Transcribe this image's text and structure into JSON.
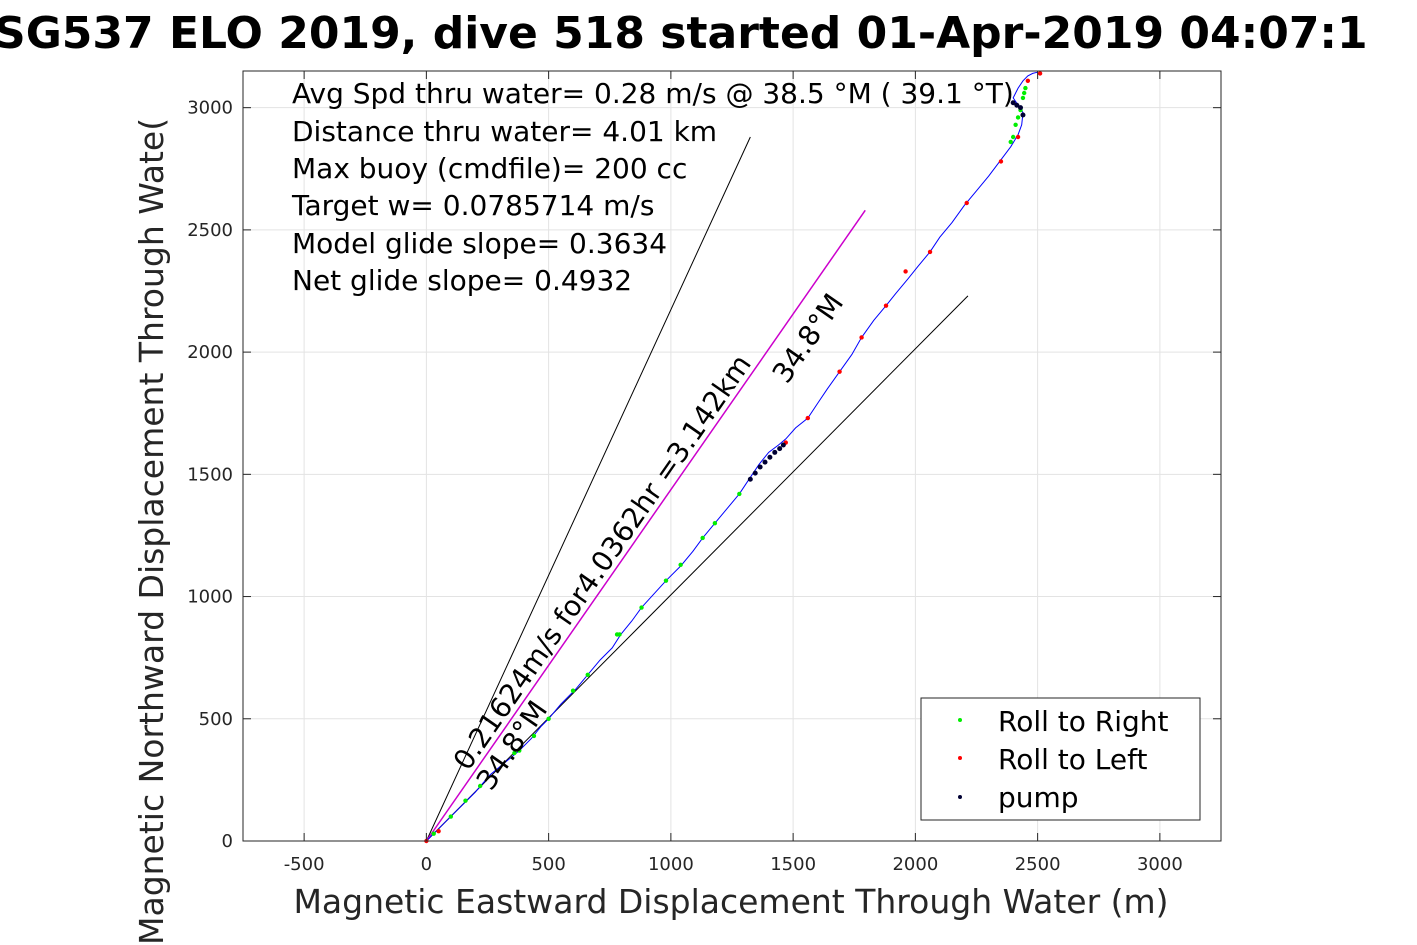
{
  "chart_data": {
    "type": "line",
    "title": "SG537 ELO 2019, dive 518 started 01-Apr-2019 04:07:1",
    "xlabel": "Magnetic Eastward Displacement Through Water (m)",
    "ylabel": "Magnetic Northward Displacement Through Wate(",
    "xlim": [
      -750,
      3250
    ],
    "ylim": [
      0,
      3150
    ],
    "xticks": [
      -500,
      0,
      500,
      1000,
      1500,
      2000,
      2500,
      3000
    ],
    "xtick_labels": [
      "-500",
      "0",
      "500",
      "1000",
      "1500",
      "2000",
      "2500",
      "3000"
    ],
    "yticks": [
      0,
      500,
      1000,
      1500,
      2000,
      2500,
      3000
    ],
    "ytick_labels": [
      "0",
      "500",
      "1000",
      "1500",
      "2000",
      "2500",
      "3000"
    ],
    "grid": true,
    "annotations": [
      "Avg Spd thru water=  0.28 m/s @  38.5 °M ( 39.1 °T)",
      "Distance thru water=  4.01 km",
      "Max buoy (cmdfile)= 200 cc",
      "Target w= 0.0785714 m/s",
      "Model glide slope= 0.3634",
      "Net glide slope= 0.4932"
    ],
    "rotated_labels": {
      "current": "0.21624m/s for4.0362hr =3.142km",
      "heading_upper": "34.8°M",
      "heading_lower": "34.8°M"
    },
    "reference_lines": [
      {
        "name": "heading-bound-left",
        "color": "#000000",
        "x": [
          0,
          1325
        ],
        "y": [
          0,
          2880
        ]
      },
      {
        "name": "heading-bound-right",
        "color": "#000000",
        "x": [
          0,
          2215
        ],
        "y": [
          0,
          2230
        ]
      },
      {
        "name": "current-vector",
        "color": "#cc00cc",
        "x": [
          0,
          1795
        ],
        "y": [
          0,
          2580
        ]
      }
    ],
    "track": {
      "color": "#0000ff",
      "x": [
        0,
        60,
        130,
        200,
        260,
        320,
        380,
        430,
        470,
        500,
        550,
        610,
        660,
        710,
        760,
        795,
        840,
        880,
        930,
        980,
        1040,
        1090,
        1130,
        1180,
        1230,
        1280,
        1320,
        1360,
        1400,
        1440,
        1470,
        1510,
        1560,
        1600,
        1640,
        1690,
        1740,
        1780,
        1830,
        1880,
        1920,
        1970,
        2010,
        2060,
        2100,
        2150,
        2200,
        2250,
        2300,
        2345,
        2390,
        2420,
        2435,
        2440,
        2420,
        2400,
        2420,
        2440,
        2460,
        2480,
        2500
      ],
      "y": [
        0,
        60,
        130,
        200,
        270,
        320,
        370,
        420,
        470,
        500,
        560,
        620,
        680,
        740,
        790,
        845,
        900,
        955,
        1010,
        1065,
        1125,
        1185,
        1240,
        1300,
        1360,
        1420,
        1480,
        1540,
        1590,
        1620,
        1645,
        1690,
        1730,
        1790,
        1850,
        1920,
        1990,
        2060,
        2130,
        2190,
        2240,
        2300,
        2350,
        2410,
        2470,
        2530,
        2600,
        2660,
        2720,
        2780,
        2840,
        2890,
        2930,
        2980,
        3010,
        3040,
        3080,
        3110,
        3130,
        3140,
        3145
      ]
    },
    "series": [
      {
        "name": "Roll to Right",
        "color": "#00ee00",
        "x": [
          30,
          100,
          160,
          220,
          360,
          380,
          440,
          500,
          600,
          660,
          780,
          790,
          880,
          980,
          1040,
          1130,
          1180,
          1280,
          2390,
          2400,
          2410,
          2420,
          2430,
          2440,
          2445,
          2450
        ],
        "y": [
          30,
          100,
          165,
          225,
          360,
          370,
          430,
          500,
          615,
          680,
          845,
          845,
          955,
          1065,
          1130,
          1240,
          1300,
          1420,
          2860,
          2880,
          2930,
          2960,
          2990,
          3040,
          3060,
          3080
        ]
      },
      {
        "name": "Roll to Left",
        "color": "#ff0000",
        "x": [
          0,
          50,
          1470,
          1560,
          1690,
          1780,
          1880,
          1960,
          2060,
          2210,
          2350,
          2420,
          2460,
          2510
        ],
        "y": [
          0,
          40,
          1630,
          1730,
          1920,
          2060,
          2190,
          2330,
          2410,
          2610,
          2780,
          2880,
          3110,
          3140
        ]
      },
      {
        "name": "pump",
        "color": "#000033",
        "x": [
          1325,
          1345,
          1365,
          1385,
          1405,
          1425,
          1445,
          1460,
          2400,
          2415,
          2430,
          2440
        ],
        "y": [
          1480,
          1505,
          1530,
          1550,
          1570,
          1590,
          1605,
          1620,
          3020,
          3010,
          3000,
          2970
        ]
      }
    ],
    "legend": {
      "placement": "bottom-right",
      "entries": [
        "Roll to Right",
        "Roll to Left",
        "pump"
      ]
    }
  }
}
